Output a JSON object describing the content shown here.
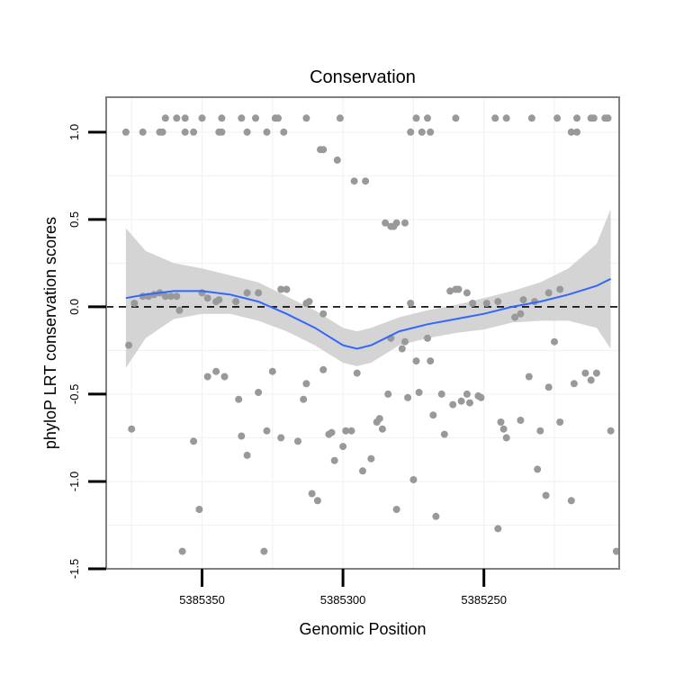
{
  "chart_data": {
    "type": "scatter",
    "title": "Conservation",
    "xlabel": "Genomic Position",
    "ylabel": "phyloP LRT conservation scores",
    "x_reversed": true,
    "xlim": [
      5385384,
      5385202
    ],
    "ylim": [
      -1.5,
      1.2
    ],
    "x_ticks": [
      5385350,
      5385300,
      5385250
    ],
    "x_tick_labels": [
      "5385350",
      "5385300",
      "5385250"
    ],
    "y_ticks": [
      -1.5,
      -1.0,
      -0.5,
      0.0,
      0.5,
      1.0
    ],
    "y_tick_labels": [
      "-1.5",
      "-1.0",
      "-0.5",
      "0.0",
      "0.5",
      "1.0"
    ],
    "reference_line": {
      "y": 0,
      "style": "dashed"
    },
    "colors": {
      "points": "#999999",
      "smooth_line": "#3366ff",
      "ribbon": "#cccccc",
      "frame": "#7f7f7f"
    },
    "points": [
      {
        "x": 5385377,
        "y": 1.0
      },
      {
        "x": 5385371,
        "y": 1.0
      },
      {
        "x": 5385363,
        "y": 1.08
      },
      {
        "x": 5385359,
        "y": 1.08
      },
      {
        "x": 5385356,
        "y": 1.08
      },
      {
        "x": 5385350,
        "y": 1.08
      },
      {
        "x": 5385343,
        "y": 1.08
      },
      {
        "x": 5385336,
        "y": 1.08
      },
      {
        "x": 5385331,
        "y": 1.08
      },
      {
        "x": 5385324,
        "y": 1.08
      },
      {
        "x": 5385323,
        "y": 1.08
      },
      {
        "x": 5385313,
        "y": 1.08
      },
      {
        "x": 5385301,
        "y": 1.08
      },
      {
        "x": 5385246,
        "y": 1.08
      },
      {
        "x": 5385242,
        "y": 1.08
      },
      {
        "x": 5385233,
        "y": 1.08
      },
      {
        "x": 5385224,
        "y": 1.08
      },
      {
        "x": 5385217,
        "y": 1.08
      },
      {
        "x": 5385212,
        "y": 1.08
      },
      {
        "x": 5385211,
        "y": 1.08
      },
      {
        "x": 5385207,
        "y": 1.08
      },
      {
        "x": 5385206,
        "y": 1.08
      },
      {
        "x": 5385274,
        "y": 1.08
      },
      {
        "x": 5385270,
        "y": 1.08
      },
      {
        "x": 5385260,
        "y": 1.08
      },
      {
        "x": 5385365,
        "y": 1.0
      },
      {
        "x": 5385364,
        "y": 1.0
      },
      {
        "x": 5385356,
        "y": 1.0
      },
      {
        "x": 5385353,
        "y": 1.0
      },
      {
        "x": 5385344,
        "y": 1.0
      },
      {
        "x": 5385343,
        "y": 1.0
      },
      {
        "x": 5385334,
        "y": 1.0
      },
      {
        "x": 5385327,
        "y": 1.0
      },
      {
        "x": 5385321,
        "y": 1.0
      },
      {
        "x": 5385276,
        "y": 1.0
      },
      {
        "x": 5385272,
        "y": 1.0
      },
      {
        "x": 5385269,
        "y": 1.0
      },
      {
        "x": 5385219,
        "y": 1.0
      },
      {
        "x": 5385217,
        "y": 1.0
      },
      {
        "x": 5385308,
        "y": 0.9
      },
      {
        "x": 5385307,
        "y": 0.9
      },
      {
        "x": 5385302,
        "y": 0.84
      },
      {
        "x": 5385296,
        "y": 0.72
      },
      {
        "x": 5385292,
        "y": 0.72
      },
      {
        "x": 5385285,
        "y": 0.48
      },
      {
        "x": 5385283,
        "y": 0.46
      },
      {
        "x": 5385282,
        "y": 0.46
      },
      {
        "x": 5385281,
        "y": 0.48
      },
      {
        "x": 5385278,
        "y": 0.48
      },
      {
        "x": 5385376,
        "y": -0.22
      },
      {
        "x": 5385374,
        "y": 0.02
      },
      {
        "x": 5385371,
        "y": 0.06
      },
      {
        "x": 5385369,
        "y": 0.06
      },
      {
        "x": 5385367,
        "y": 0.07
      },
      {
        "x": 5385365,
        "y": 0.08
      },
      {
        "x": 5385363,
        "y": 0.06
      },
      {
        "x": 5385361,
        "y": 0.06
      },
      {
        "x": 5385359,
        "y": 0.06
      },
      {
        "x": 5385358,
        "y": -0.02
      },
      {
        "x": 5385350,
        "y": 0.08
      },
      {
        "x": 5385348,
        "y": 0.05
      },
      {
        "x": 5385345,
        "y": 0.03
      },
      {
        "x": 5385344,
        "y": 0.04
      },
      {
        "x": 5385338,
        "y": 0.03
      },
      {
        "x": 5385334,
        "y": 0.08
      },
      {
        "x": 5385330,
        "y": 0.08
      },
      {
        "x": 5385322,
        "y": 0.1
      },
      {
        "x": 5385320,
        "y": 0.1
      },
      {
        "x": 5385313,
        "y": 0.02
      },
      {
        "x": 5385312,
        "y": 0.03
      },
      {
        "x": 5385307,
        "y": -0.04
      },
      {
        "x": 5385276,
        "y": 0.02
      },
      {
        "x": 5385262,
        "y": 0.09
      },
      {
        "x": 5385260,
        "y": 0.1
      },
      {
        "x": 5385259,
        "y": 0.1
      },
      {
        "x": 5385256,
        "y": 0.08
      },
      {
        "x": 5385254,
        "y": 0.02
      },
      {
        "x": 5385249,
        "y": 0.02
      },
      {
        "x": 5385245,
        "y": 0.03
      },
      {
        "x": 5385239,
        "y": -0.06
      },
      {
        "x": 5385237,
        "y": -0.04
      },
      {
        "x": 5385236,
        "y": 0.04
      },
      {
        "x": 5385232,
        "y": 0.03
      },
      {
        "x": 5385225,
        "y": -0.2
      },
      {
        "x": 5385223,
        "y": 0.1
      },
      {
        "x": 5385227,
        "y": 0.08
      },
      {
        "x": 5385375,
        "y": -0.7
      },
      {
        "x": 5385357,
        "y": -1.4
      },
      {
        "x": 5385353,
        "y": -0.77
      },
      {
        "x": 5385351,
        "y": -1.16
      },
      {
        "x": 5385348,
        "y": -0.4
      },
      {
        "x": 5385345,
        "y": -0.37
      },
      {
        "x": 5385342,
        "y": -0.4
      },
      {
        "x": 5385337,
        "y": -0.53
      },
      {
        "x": 5385336,
        "y": -0.74
      },
      {
        "x": 5385334,
        "y": -0.85
      },
      {
        "x": 5385330,
        "y": -0.49
      },
      {
        "x": 5385328,
        "y": -1.4
      },
      {
        "x": 5385327,
        "y": -0.71
      },
      {
        "x": 5385325,
        "y": -0.37
      },
      {
        "x": 5385322,
        "y": -0.75
      },
      {
        "x": 5385316,
        "y": -0.77
      },
      {
        "x": 5385314,
        "y": -0.53
      },
      {
        "x": 5385313,
        "y": -0.44
      },
      {
        "x": 5385311,
        "y": -1.07
      },
      {
        "x": 5385309,
        "y": -1.11
      },
      {
        "x": 5385307,
        "y": -0.36
      },
      {
        "x": 5385305,
        "y": -0.73
      },
      {
        "x": 5385304,
        "y": -0.72
      },
      {
        "x": 5385303,
        "y": -0.88
      },
      {
        "x": 5385300,
        "y": -0.8
      },
      {
        "x": 5385299,
        "y": -0.71
      },
      {
        "x": 5385297,
        "y": -0.71
      },
      {
        "x": 5385295,
        "y": -0.38
      },
      {
        "x": 5385293,
        "y": -0.94
      },
      {
        "x": 5385290,
        "y": -0.87
      },
      {
        "x": 5385288,
        "y": -0.66
      },
      {
        "x": 5385287,
        "y": -0.64
      },
      {
        "x": 5385286,
        "y": -0.7
      },
      {
        "x": 5385284,
        "y": -0.5
      },
      {
        "x": 5385283,
        "y": -0.18
      },
      {
        "x": 5385281,
        "y": -1.16
      },
      {
        "x": 5385279,
        "y": -0.24
      },
      {
        "x": 5385278,
        "y": -0.2
      },
      {
        "x": 5385277,
        "y": -0.52
      },
      {
        "x": 5385275,
        "y": -0.99
      },
      {
        "x": 5385274,
        "y": -0.31
      },
      {
        "x": 5385273,
        "y": -0.49
      },
      {
        "x": 5385270,
        "y": -0.18
      },
      {
        "x": 5385269,
        "y": -0.31
      },
      {
        "x": 5385268,
        "y": -0.62
      },
      {
        "x": 5385267,
        "y": -1.2
      },
      {
        "x": 5385265,
        "y": -0.5
      },
      {
        "x": 5385264,
        "y": -0.73
      },
      {
        "x": 5385261,
        "y": -0.56
      },
      {
        "x": 5385258,
        "y": -0.54
      },
      {
        "x": 5385256,
        "y": -0.5
      },
      {
        "x": 5385255,
        "y": -0.55
      },
      {
        "x": 5385252,
        "y": -0.51
      },
      {
        "x": 5385251,
        "y": -0.52
      },
      {
        "x": 5385245,
        "y": -1.27
      },
      {
        "x": 5385244,
        "y": -0.66
      },
      {
        "x": 5385243,
        "y": -0.7
      },
      {
        "x": 5385242,
        "y": -0.75
      },
      {
        "x": 5385237,
        "y": -0.65
      },
      {
        "x": 5385234,
        "y": -0.4
      },
      {
        "x": 5385231,
        "y": -0.93
      },
      {
        "x": 5385230,
        "y": -0.71
      },
      {
        "x": 5385228,
        "y": -1.08
      },
      {
        "x": 5385227,
        "y": -0.46
      },
      {
        "x": 5385223,
        "y": -0.66
      },
      {
        "x": 5385219,
        "y": -1.11
      },
      {
        "x": 5385218,
        "y": -0.44
      },
      {
        "x": 5385214,
        "y": -0.38
      },
      {
        "x": 5385212,
        "y": -0.42
      },
      {
        "x": 5385210,
        "y": -0.38
      },
      {
        "x": 5385205,
        "y": -0.71
      },
      {
        "x": 5385203,
        "y": -1.4
      }
    ],
    "smooth_fit": {
      "x": [
        5385377,
        5385370,
        5385360,
        5385350,
        5385340,
        5385330,
        5385320,
        5385310,
        5385300,
        5385295,
        5385290,
        5385280,
        5385270,
        5385260,
        5385250,
        5385240,
        5385230,
        5385220,
        5385210,
        5385205
      ],
      "y": [
        0.05,
        0.07,
        0.09,
        0.09,
        0.07,
        0.03,
        -0.04,
        -0.12,
        -0.22,
        -0.24,
        -0.22,
        -0.14,
        -0.1,
        -0.07,
        -0.04,
        0.0,
        0.03,
        0.07,
        0.12,
        0.16
      ],
      "ci_upper": [
        0.45,
        0.32,
        0.25,
        0.22,
        0.18,
        0.14,
        0.06,
        -0.02,
        -0.12,
        -0.14,
        -0.12,
        -0.06,
        -0.02,
        0.01,
        0.05,
        0.09,
        0.14,
        0.22,
        0.36,
        0.56
      ],
      "ci_lower": [
        -0.35,
        -0.18,
        -0.07,
        -0.04,
        -0.04,
        -0.08,
        -0.14,
        -0.22,
        -0.32,
        -0.34,
        -0.32,
        -0.22,
        -0.18,
        -0.15,
        -0.13,
        -0.09,
        -0.08,
        -0.08,
        -0.12,
        -0.24
      ]
    }
  }
}
